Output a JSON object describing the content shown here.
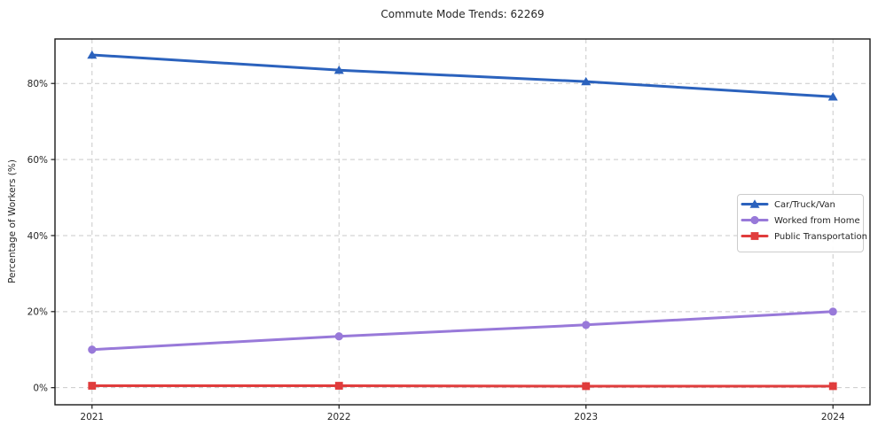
{
  "chart": {
    "title": "Commute Mode Trends: 62269",
    "ylabel": "Percentage of Workers (%)"
  },
  "chart_data": {
    "type": "line",
    "title": "Commute Mode Trends: 62269",
    "xlabel": "",
    "ylabel": "Percentage of Workers (%)",
    "x": [
      2021,
      2022,
      2023,
      2024
    ],
    "xtick_labels": [
      "2021",
      "2022",
      "2023",
      "2024"
    ],
    "yticks": [
      0,
      20,
      40,
      60,
      80
    ],
    "ytick_labels": [
      "0%",
      "20%",
      "40%",
      "60%",
      "80%"
    ],
    "xlim": [
      2020.85,
      2024.15
    ],
    "ylim": [
      -4.5,
      91.7
    ],
    "grid": true,
    "grid_style": "dashed",
    "legend_position": "center-right",
    "series": [
      {
        "name": "Car/Truck/Van",
        "marker": "triangle",
        "color": "#2b62bd",
        "values": [
          87.5,
          83.5,
          80.5,
          76.5
        ]
      },
      {
        "name": "Worked from Home",
        "marker": "circle",
        "color": "#9879d9",
        "values": [
          10.0,
          13.5,
          16.5,
          20.0
        ]
      },
      {
        "name": "Public Transportation",
        "marker": "square",
        "color": "#e03c3c",
        "values": [
          0.5,
          0.5,
          0.4,
          0.4
        ]
      }
    ]
  },
  "colors": {
    "background": "#ffffff",
    "grid": "#c9c9c9",
    "spine": "#1a1a1a",
    "tick": "#1a1a1a",
    "text": "#262626",
    "legend_border": "#cccccc",
    "legend_background": "#ffffff"
  }
}
